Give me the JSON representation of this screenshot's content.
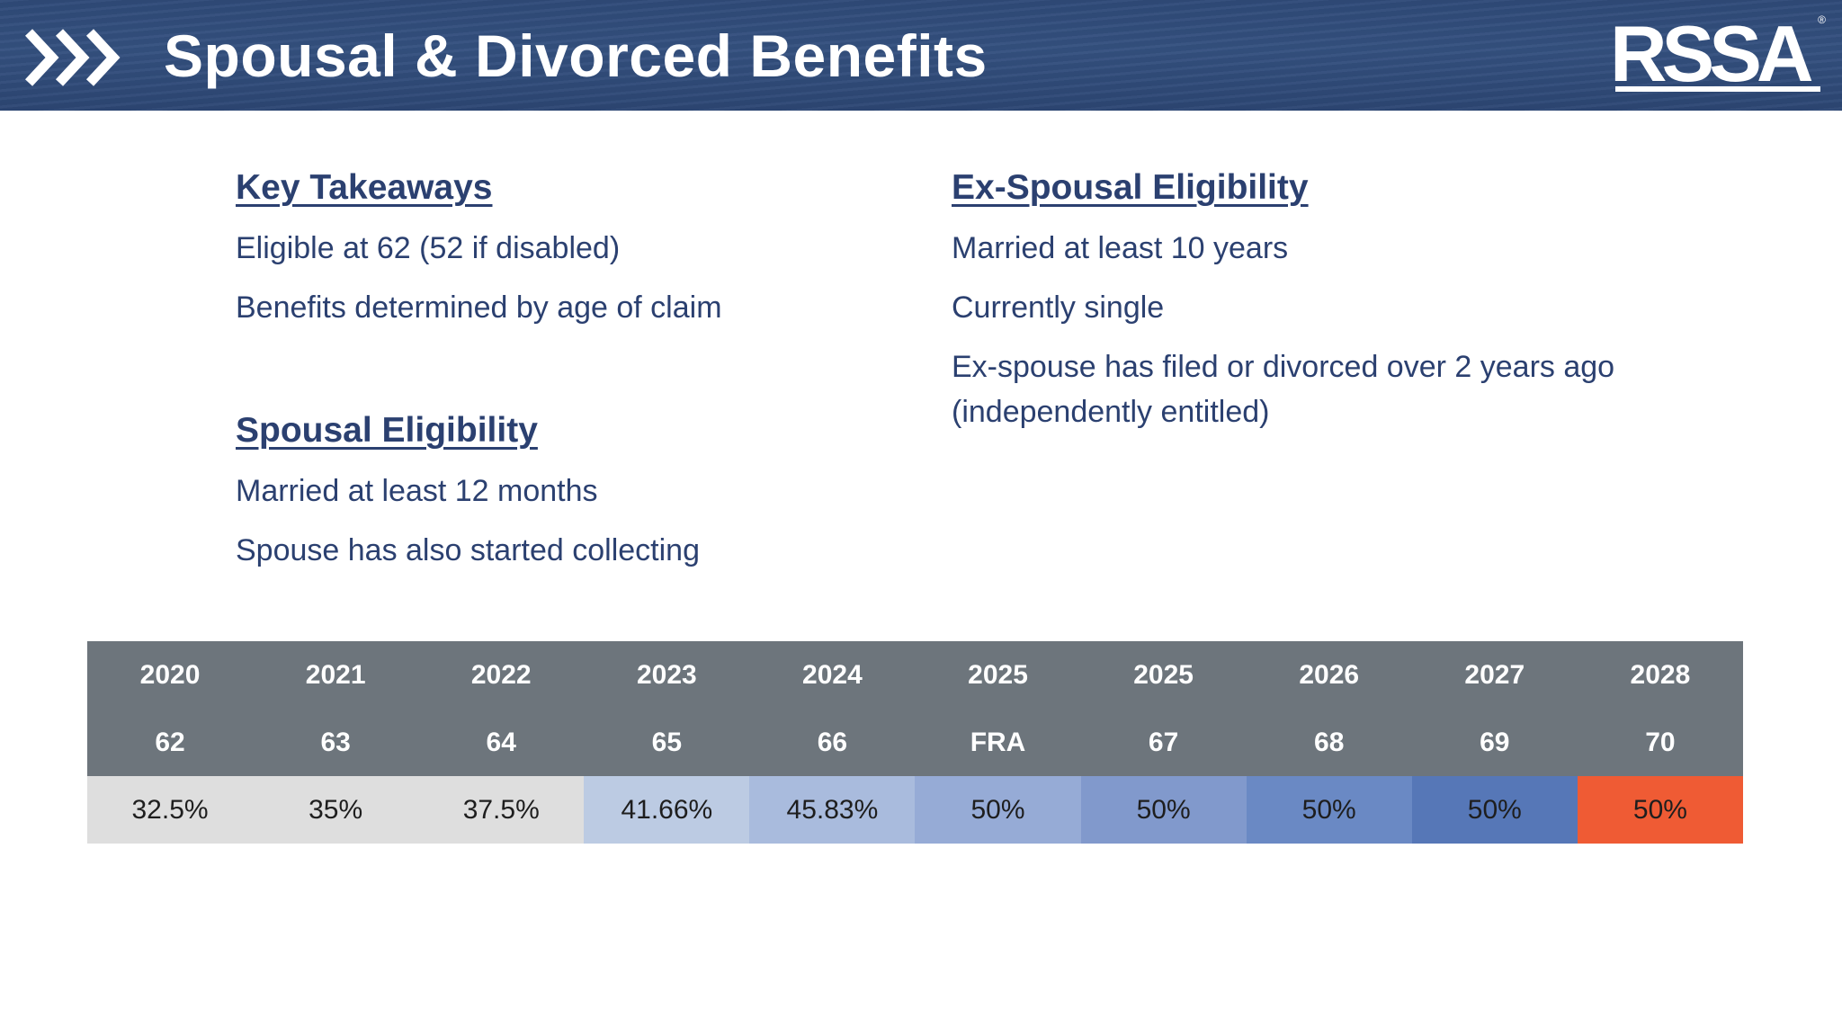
{
  "header": {
    "title": "Spousal & Divorced Benefits",
    "logo_text": "RSSA",
    "logo_mark": "®"
  },
  "key_takeaways": {
    "heading": "Key Takeaways",
    "items": [
      "Eligible at 62 (52 if disabled)",
      "Benefits determined by age of claim"
    ]
  },
  "spousal_eligibility": {
    "heading": "Spousal Eligibility",
    "items": [
      "Married at least 12 months",
      "Spouse has also started collecting"
    ]
  },
  "ex_spousal_eligibility": {
    "heading": "Ex-Spousal Eligibility",
    "items": [
      "Married at least 10 years",
      "Currently single",
      "Ex-spouse has filed or divorced over 2 years ago",
      "(independently entitled)"
    ]
  },
  "benefit_table": {
    "years": [
      "2020",
      "2021",
      "2022",
      "2023",
      "2024",
      "2025",
      "2025",
      "2026",
      "2027",
      "2028"
    ],
    "ages": [
      "62",
      "63",
      "64",
      "65",
      "66",
      "FRA",
      "67",
      "68",
      "69",
      "70"
    ],
    "percents": [
      "32.5%",
      "35%",
      "37.5%",
      "41.66%",
      "45.83%",
      "50%",
      "50%",
      "50%",
      "50%",
      "50%"
    ],
    "cell_colors": [
      "#dedede",
      "#dedede",
      "#dedede",
      "#bccbe3",
      "#a9bbdd",
      "#96abd6",
      "#8199cc",
      "#6a89c4",
      "#5677b7",
      "#ef5b34"
    ],
    "header_color": "#6d757c"
  }
}
